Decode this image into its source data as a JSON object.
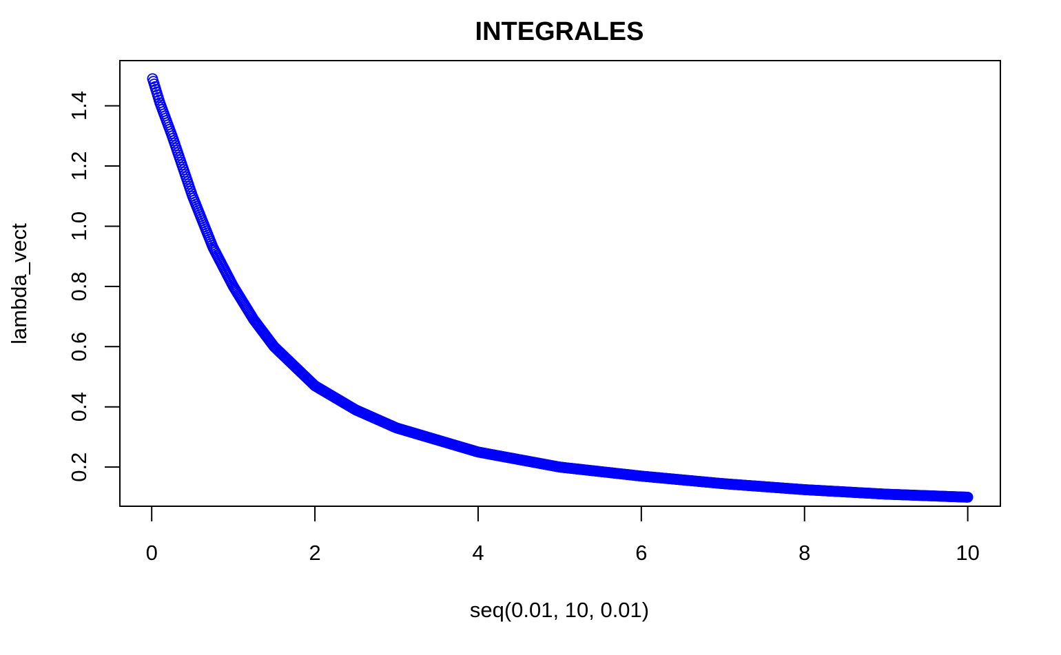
{
  "chart_data": {
    "type": "scatter",
    "title": "INTEGRALES",
    "xlabel": "seq(0.01, 10, 0.01)",
    "ylabel": "lambda_vect",
    "x_range": [
      0.01,
      10
    ],
    "x_step": 0.01,
    "xlim": [
      -0.39,
      10.4
    ],
    "ylim": [
      0.07,
      1.55
    ],
    "x_ticks": [
      0,
      2,
      4,
      6,
      8,
      10
    ],
    "y_ticks": [
      0.2,
      0.4,
      0.6,
      0.8,
      1.0,
      1.2,
      1.4
    ],
    "y_tick_labels": [
      "0.2",
      "0.4",
      "0.6",
      "0.8",
      "1.0",
      "1.2",
      "1.4"
    ],
    "point_color": "#0000ff",
    "marker": "open-circle",
    "grid": false,
    "legend": "none",
    "series": [
      {
        "x": [
          0.01,
          0.1,
          0.25,
          0.5,
          0.75,
          1.0,
          1.25,
          1.5,
          2.0,
          2.5,
          3.0,
          3.5,
          4.0,
          5.0,
          6.0,
          7.0,
          8.0,
          9.0,
          10.0
        ],
        "y": [
          1.49,
          1.41,
          1.3,
          1.1,
          0.93,
          0.8,
          0.69,
          0.6,
          0.47,
          0.39,
          0.33,
          0.29,
          0.25,
          0.2,
          0.17,
          0.145,
          0.125,
          0.11,
          0.1
        ]
      }
    ]
  }
}
